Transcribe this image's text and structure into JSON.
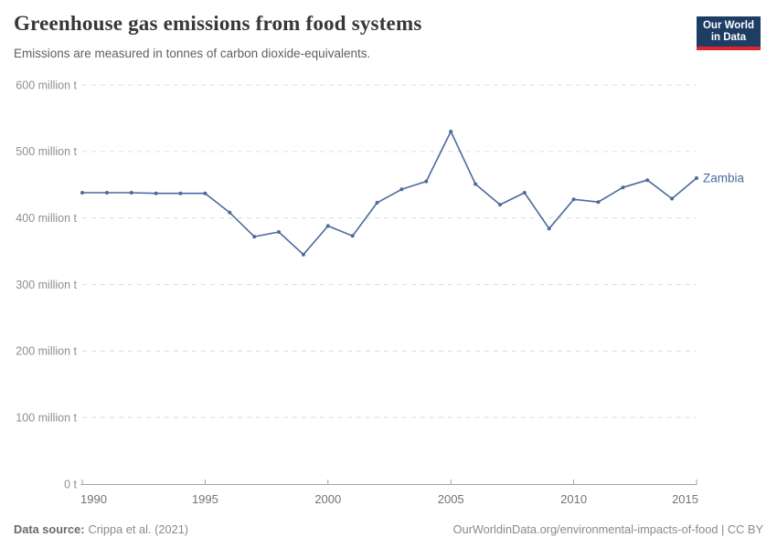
{
  "header": {
    "title": "Greenhouse gas emissions from food systems",
    "subtitle": "Emissions are measured in tonnes of carbon dioxide-equivalents.",
    "logo": {
      "line1": "Our World",
      "line2": "in Data"
    }
  },
  "footer": {
    "source_label": "Data source:",
    "source_text": "Crippa et al. (2021)",
    "link_text": "OurWorldinData.org/environmental-impacts-of-food | CC BY"
  },
  "colors": {
    "line": "#4C6A9C",
    "logo_bg": "#1D3D63",
    "logo_red": "#E0262D",
    "grid": "#DCDCDC",
    "axis": "#A3A3A3",
    "tick_label": "#8F8F8F",
    "x_tick_label": "#737373",
    "title": "#373737",
    "subtitle": "#5F5F5F",
    "footer": "#8A8A8A",
    "footer_label": "#6B6B6B"
  },
  "chart_data": {
    "type": "line",
    "title": "Greenhouse gas emissions from food systems",
    "subtitle": "Emissions are measured in tonnes of carbon dioxide-equivalents.",
    "unit": "million t",
    "grid": true,
    "legend_position": "end-of-line",
    "xlim": [
      1990,
      2015
    ],
    "ylim": [
      0,
      600
    ],
    "x": [
      1990,
      1991,
      1992,
      1993,
      1994,
      1995,
      1996,
      1997,
      1998,
      1999,
      2000,
      2001,
      2002,
      2003,
      2004,
      2005,
      2006,
      2007,
      2008,
      2009,
      2010,
      2011,
      2012,
      2013,
      2014,
      2015
    ],
    "series": [
      {
        "name": "Zambia",
        "values": [
          438,
          438,
          438,
          437,
          437,
          437,
          408,
          372,
          379,
          345,
          388,
          373,
          423,
          443,
          455,
          530,
          451,
          420,
          438,
          384,
          428,
          424,
          446,
          457,
          429,
          460
        ]
      }
    ],
    "x_ticks": [
      1990,
      1995,
      2000,
      2005,
      2010,
      2015
    ],
    "y_ticks": [
      {
        "value": 0,
        "label": "0 t"
      },
      {
        "value": 100,
        "label": "100 million t"
      },
      {
        "value": 200,
        "label": "200 million t"
      },
      {
        "value": 300,
        "label": "300 million t"
      },
      {
        "value": 400,
        "label": "400 million t"
      },
      {
        "value": 500,
        "label": "500 million t"
      },
      {
        "value": 600,
        "label": "600 million t"
      }
    ]
  }
}
